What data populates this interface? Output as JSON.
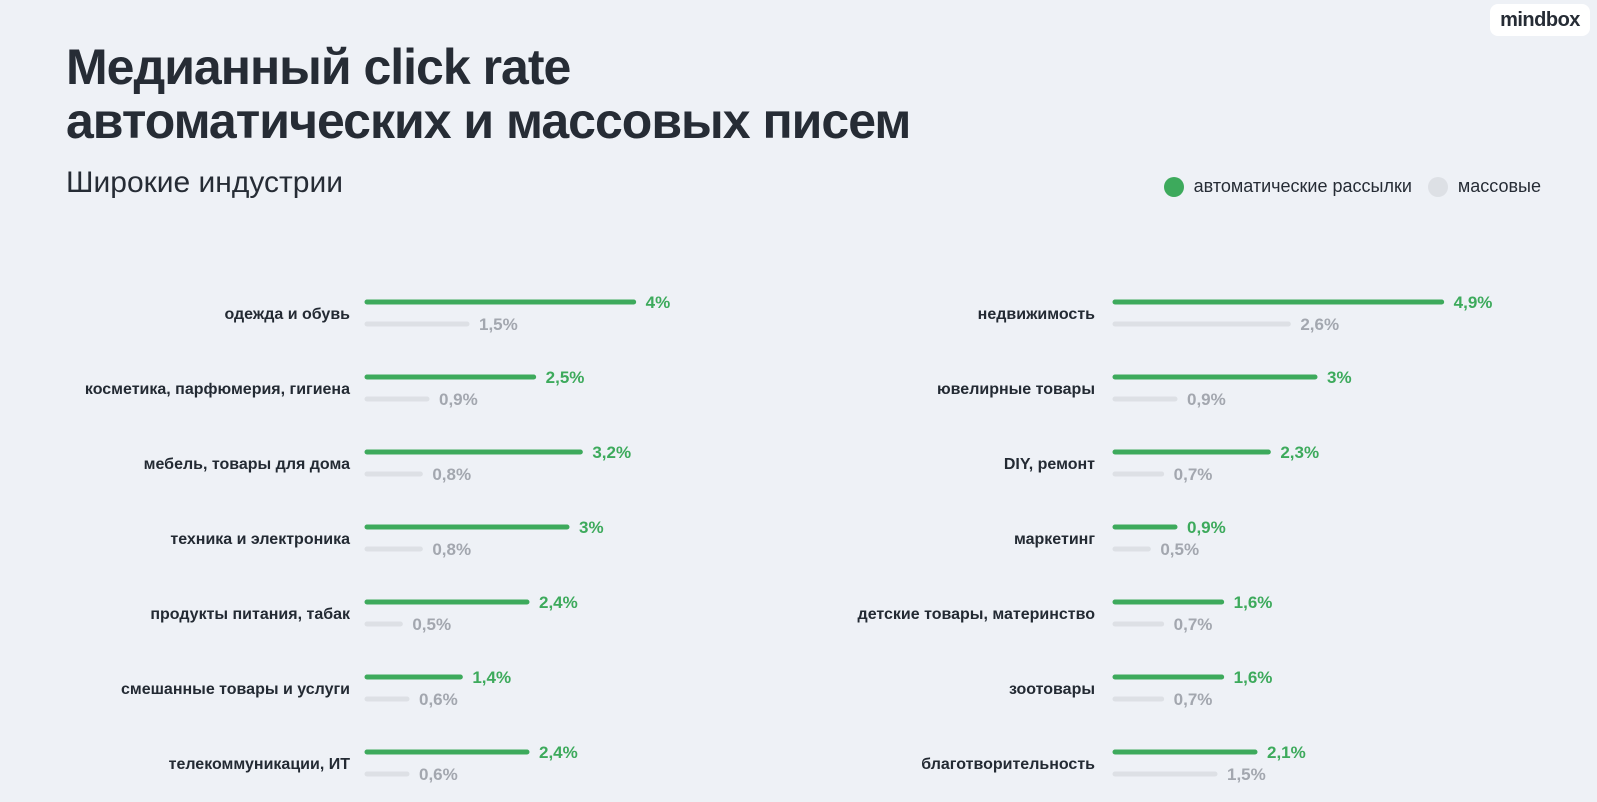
{
  "logo": "mindbox",
  "title_line1": "Медианный click rate",
  "title_line2": "автоматических и массовых писем",
  "subtitle": "Широкие индустрии",
  "colors": {
    "auto": "#3daa5c",
    "mass": "#dde0e5",
    "auto_label": "#3daa5c",
    "mass_label": "#a3a7af",
    "category_label": "#232a33"
  },
  "chart_data": {
    "type": "bar",
    "title": "Медианный click rate автоматических и массовых писем",
    "subtitle": "Широкие индустрии",
    "orientation": "horizontal",
    "unit": "%",
    "legend": [
      "автоматические рассылки",
      "массовые"
    ],
    "legend_position": "top-right",
    "grid": false,
    "panels": [
      {
        "categories": [
          "одежда и обувь",
          "косметика, парфюмерия, гигиена",
          "мебель, товары для дома",
          "техника и электроника",
          "продукты питания, табак",
          "смешанные товары и услуги",
          "телекоммуникации, ИТ"
        ],
        "series": [
          {
            "name": "автоматические рассылки",
            "values": [
              4,
              2.5,
              3.2,
              3,
              2.4,
              1.4,
              2.4
            ],
            "labels": [
              "4%",
              "2,5%",
              "3,2%",
              "3%",
              "2,4%",
              "1,4%",
              "2,4%"
            ]
          },
          {
            "name": "массовые",
            "values": [
              1.5,
              0.9,
              0.8,
              0.8,
              0.5,
              0.6,
              0.6
            ],
            "labels": [
              "1,5%",
              "0,9%",
              "0,8%",
              "0,8%",
              "0,5%",
              "0,6%",
              "0,6%"
            ]
          }
        ]
      },
      {
        "categories": [
          "недвижимость",
          "ювелирные товары",
          "DIY, ремонт",
          "маркетинг",
          "детские товары, материнство",
          "зоотовары",
          "благотворительность"
        ],
        "series": [
          {
            "name": "автоматические рассылки",
            "values": [
              4.9,
              3,
              2.3,
              0.9,
              1.6,
              1.6,
              2.1
            ],
            "labels": [
              "4,9%",
              "3%",
              "2,3%",
              "0,9%",
              "1,6%",
              "1,6%",
              "2,1%"
            ]
          },
          {
            "name": "массовые",
            "values": [
              2.6,
              0.9,
              0.7,
              0.5,
              0.7,
              0.7,
              1.5
            ],
            "labels": [
              "2,6%",
              "0,9%",
              "0,7%",
              "0,5%",
              "0,7%",
              "0,7%",
              "1,5%"
            ]
          }
        ]
      }
    ]
  }
}
